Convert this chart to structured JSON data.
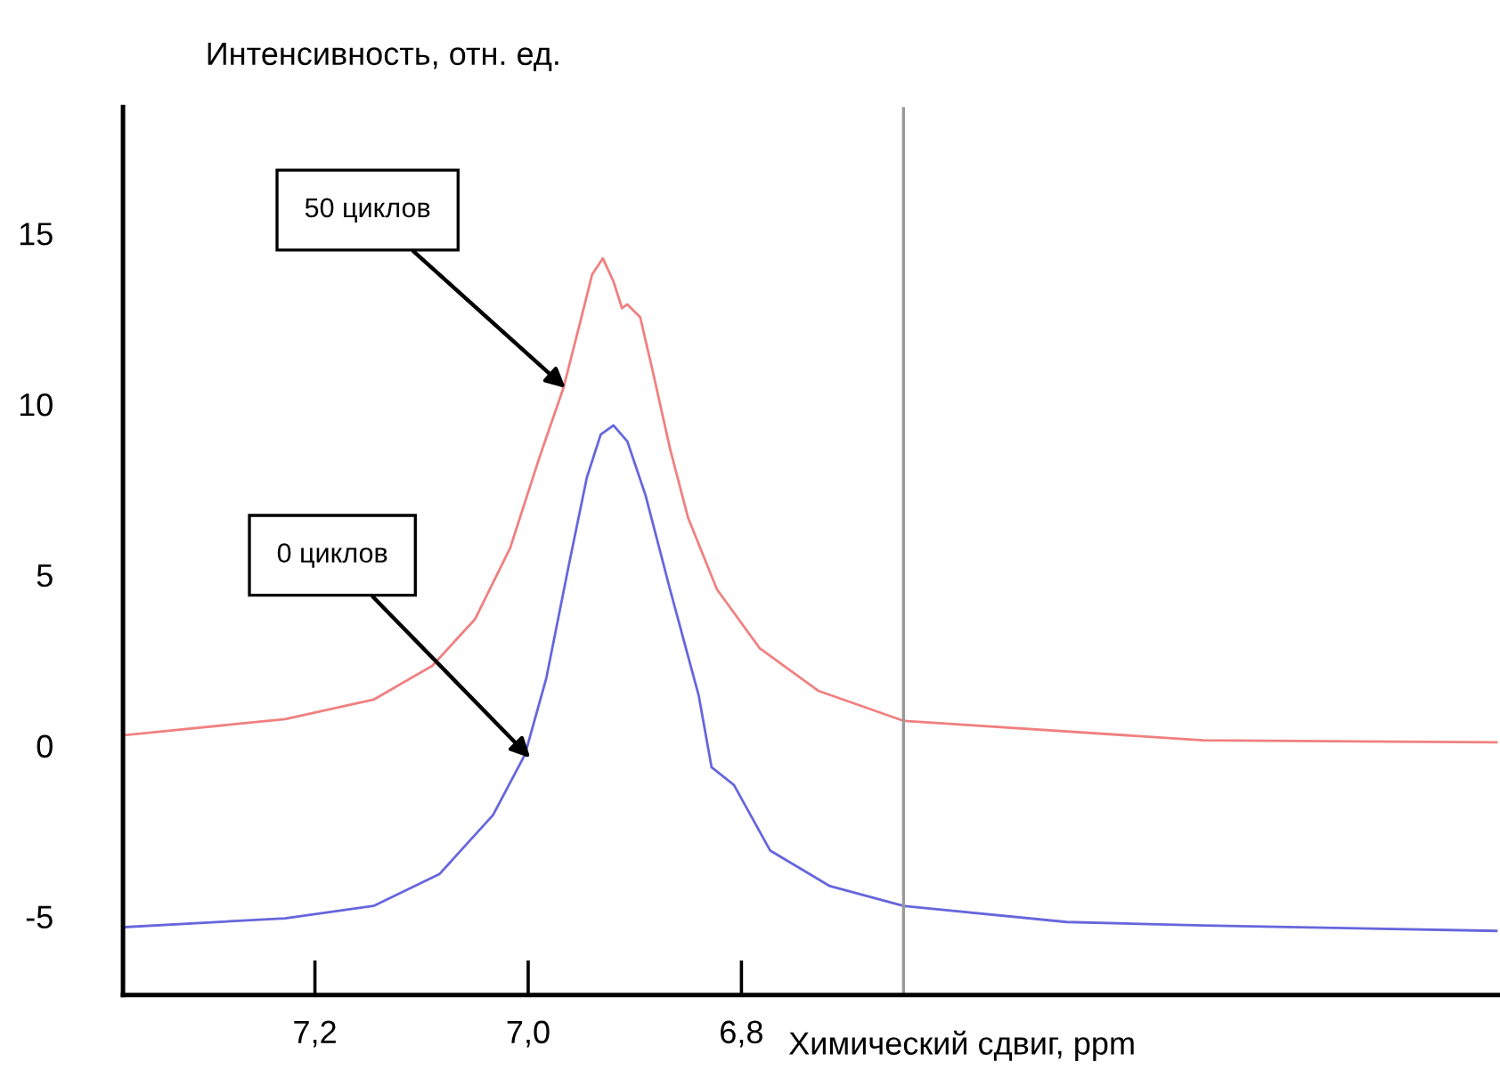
{
  "chart_data": {
    "type": "line",
    "xlabel": "Химический сдвиг, ppm",
    "ylabel": "Интенсивность, отн. ед.",
    "xlim": [
      7.38,
      6.09
    ],
    "xticks": [
      {
        "value": 7.2,
        "label": "7,2"
      },
      {
        "value": 7.0,
        "label": "7,0"
      },
      {
        "value": 6.8,
        "label": "6,8"
      }
    ],
    "ylim": [
      -7.3,
      18.7
    ],
    "yticks": [
      {
        "value": -5,
        "label": "-5"
      },
      0,
      5,
      10,
      15
    ],
    "grid": false,
    "legend": false,
    "marker": "none",
    "line_style": "solid",
    "ref_lines": [
      {
        "axis": "x",
        "value": 6.648,
        "color": "#999999"
      }
    ],
    "annotations": [
      {
        "text": "50 циклов",
        "x": 6.965,
        "y": 10.47
      },
      {
        "text": "0 циклов",
        "x": 6.998,
        "y": -0.36
      }
    ],
    "series": [
      {
        "color": "#f08080",
        "x": [
          7.378,
          7.228,
          7.145,
          7.09,
          7.05,
          7.017,
          6.99,
          6.967,
          6.95,
          6.94,
          6.93,
          6.92,
          6.912,
          6.907,
          6.895,
          6.883,
          6.867,
          6.85,
          6.823,
          6.783,
          6.728,
          6.648,
          6.367,
          6.092
        ],
        "values": [
          0.31,
          0.78,
          1.35,
          2.34,
          3.7,
          5.78,
          8.39,
          10.47,
          12.55,
          13.8,
          14.27,
          13.59,
          12.81,
          12.92,
          12.55,
          10.94,
          8.7,
          6.67,
          4.58,
          2.86,
          1.61,
          0.73,
          0.16,
          0.1
        ]
      },
      {
        "color": "#6666dd",
        "x": [
          7.378,
          7.228,
          7.145,
          7.083,
          7.033,
          7.003,
          6.983,
          6.962,
          6.945,
          6.932,
          6.92,
          6.907,
          6.89,
          6.867,
          6.84,
          6.828,
          6.807,
          6.773,
          6.717,
          6.648,
          6.495,
          6.367,
          6.092
        ],
        "values": [
          -5.31,
          -5.05,
          -4.69,
          -3.75,
          -2.03,
          -0.26,
          1.98,
          5.27,
          7.85,
          9.11,
          9.38,
          8.91,
          7.34,
          4.58,
          1.46,
          -0.63,
          -1.15,
          -3.07,
          -4.11,
          -4.69,
          -5.16,
          -5.26,
          -5.42
        ]
      }
    ]
  }
}
